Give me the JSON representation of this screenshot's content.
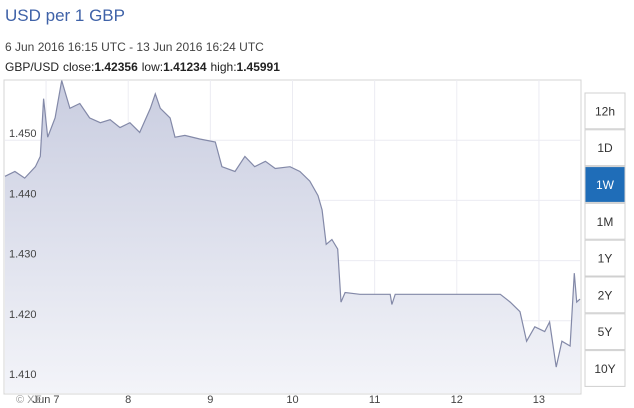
{
  "chart_data": {
    "type": "area",
    "title": "USD per 1 GBP",
    "subtitle": "6 Jun 2016 16:15 UTC - 13 Jun 2016 16:24 UTC",
    "pair": "GBP/USD",
    "stats": [
      {
        "label": "close:",
        "value": 1.42356
      },
      {
        "label": "low:",
        "value": 1.41234
      },
      {
        "label": "high:",
        "value": 1.45991
      }
    ],
    "x": [
      6.5,
      6.62,
      6.74,
      6.87,
      6.93,
      6.97,
      7.02,
      7.11,
      7.19,
      7.29,
      7.41,
      7.53,
      7.66,
      7.78,
      7.9,
      8.02,
      8.14,
      8.27,
      8.33,
      8.39,
      8.51,
      8.57,
      8.69,
      8.87,
      9.06,
      9.14,
      9.3,
      9.42,
      9.54,
      9.67,
      9.79,
      9.97,
      10.09,
      10.21,
      10.31,
      10.36,
      10.41,
      10.48,
      10.55,
      10.59,
      10.64,
      10.82,
      11.19,
      11.21,
      11.25,
      12.53,
      12.65,
      12.77,
      12.85,
      12.95,
      13.07,
      13.13,
      13.21,
      13.28,
      13.38,
      13.43,
      13.46,
      13.5
    ],
    "values": [
      1.444,
      1.4448,
      1.4437,
      1.4456,
      1.4473,
      1.4569,
      1.4505,
      1.4537,
      1.4599,
      1.4553,
      1.4561,
      1.4537,
      1.4529,
      1.4534,
      1.4521,
      1.4529,
      1.4513,
      1.4553,
      1.4577,
      1.4553,
      1.4537,
      1.4505,
      1.4508,
      1.4502,
      1.4497,
      1.4456,
      1.4448,
      1.4473,
      1.4456,
      1.4465,
      1.4453,
      1.4456,
      1.4448,
      1.4432,
      1.4408,
      1.4384,
      1.4327,
      1.4335,
      1.4319,
      1.4231,
      1.4247,
      1.4244,
      1.4244,
      1.4227,
      1.4244,
      1.4244,
      1.4231,
      1.4215,
      1.4166,
      1.419,
      1.4182,
      1.4198,
      1.4123,
      1.4166,
      1.4158,
      1.4279,
      1.4231,
      1.4236
    ],
    "color": "#8389a8",
    "xlim": [
      6.5,
      13.5
    ],
    "xticks": [
      {
        "value": 7,
        "label": "Jun 7"
      },
      8,
      9,
      10,
      11,
      12,
      13
    ],
    "ylim": [
      1.408,
      1.46
    ],
    "yticks": [
      {
        "value": 1.41,
        "label": "1.410"
      },
      {
        "value": 1.42,
        "label": "1.420"
      },
      {
        "value": 1.43,
        "label": "1.430"
      },
      {
        "value": 1.44,
        "label": "1.440"
      },
      {
        "value": 1.45,
        "label": "1.450"
      }
    ],
    "grid": true,
    "range_buttons": [
      "12h",
      "1D",
      "1W",
      "1M",
      "1Y",
      "2Y",
      "5Y",
      "10Y"
    ],
    "active_range": "1W",
    "watermark": "© XE"
  }
}
